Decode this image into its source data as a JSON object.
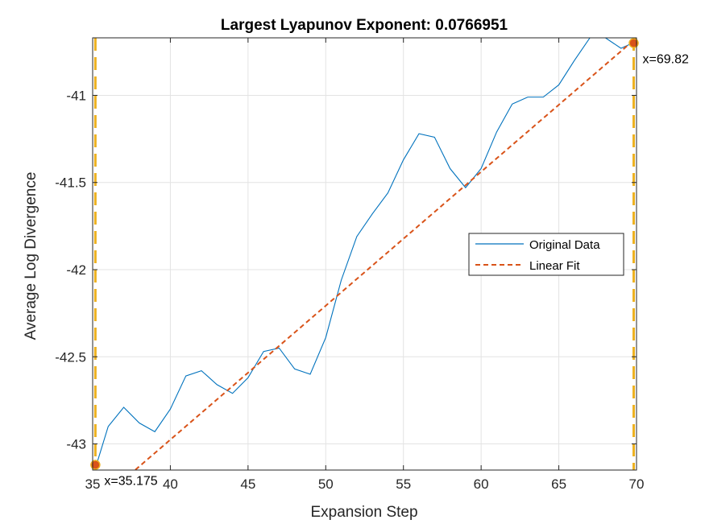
{
  "chart_data": {
    "type": "line",
    "title": "Largest Lyapunov Exponent: 0.0766951",
    "xlabel": "Expansion Step",
    "ylabel": "Average Log Divergence",
    "xlim": [
      35,
      70
    ],
    "ylim": [
      -43.15,
      -40.67
    ],
    "xticks": [
      35,
      40,
      45,
      50,
      55,
      60,
      65,
      70
    ],
    "xtick_labels": [
      "35",
      "40",
      "45",
      "50",
      "55",
      "60",
      "65",
      "70"
    ],
    "yticks": [
      -43,
      -42.5,
      -42,
      -41.5,
      -41
    ],
    "ytick_labels": [
      "-43",
      "-42.5",
      "-42",
      "-41.5",
      "-41"
    ],
    "grid": true,
    "legend_position": "right",
    "series": [
      {
        "name": "Original Data",
        "color": "#0072BD",
        "style": "solid",
        "x": [
          35,
          36,
          37,
          38,
          39,
          40,
          41,
          42,
          43,
          44,
          45,
          46,
          47,
          48,
          49,
          50,
          51,
          52,
          53,
          54,
          55,
          56,
          57,
          58,
          59,
          60,
          61,
          62,
          63,
          64,
          65,
          66,
          67,
          68,
          69,
          70
        ],
        "y": [
          -43.19,
          -42.9,
          -42.79,
          -42.88,
          -42.93,
          -42.8,
          -42.61,
          -42.58,
          -42.66,
          -42.71,
          -42.62,
          -42.47,
          -42.45,
          -42.57,
          -42.6,
          -42.39,
          -42.06,
          -41.81,
          -41.68,
          -41.56,
          -41.37,
          -41.22,
          -41.24,
          -41.42,
          -41.53,
          -41.42,
          -41.21,
          -41.05,
          -41.01,
          -41.01,
          -40.94,
          -40.8,
          -40.67,
          -40.67,
          -40.73,
          -40.69
        ]
      },
      {
        "name": "Linear Fit",
        "color": "#D95319",
        "style": "dashed",
        "x": [
          35,
          70
        ],
        "y": [
          -43.36,
          -40.67
        ]
      }
    ],
    "vertical_lines": [
      {
        "x": 35.175,
        "color": "#EDB120"
      },
      {
        "x": 69.82,
        "color": "#EDB120"
      }
    ],
    "markers": [
      {
        "x": 35.175,
        "y": -43.12,
        "label": "x=35.175",
        "color": "#D95319"
      },
      {
        "x": 69.82,
        "y": -40.7,
        "label": "x=69.82",
        "color": "#D95319"
      }
    ]
  }
}
